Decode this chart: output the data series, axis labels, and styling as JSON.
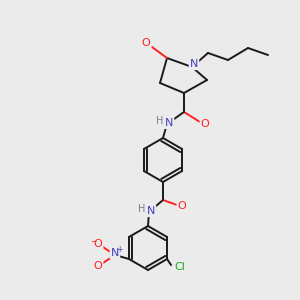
{
  "background_color": "#ebebeb",
  "figure_size": [
    3.0,
    3.0
  ],
  "dpi": 100,
  "colors": {
    "bond": "#1a1a1a",
    "N": "#4040c0",
    "O": "#ff2020",
    "Cl": "#20aa20",
    "H_label": "#708090",
    "C": "#1a1a1a"
  },
  "font_size": 7.5
}
